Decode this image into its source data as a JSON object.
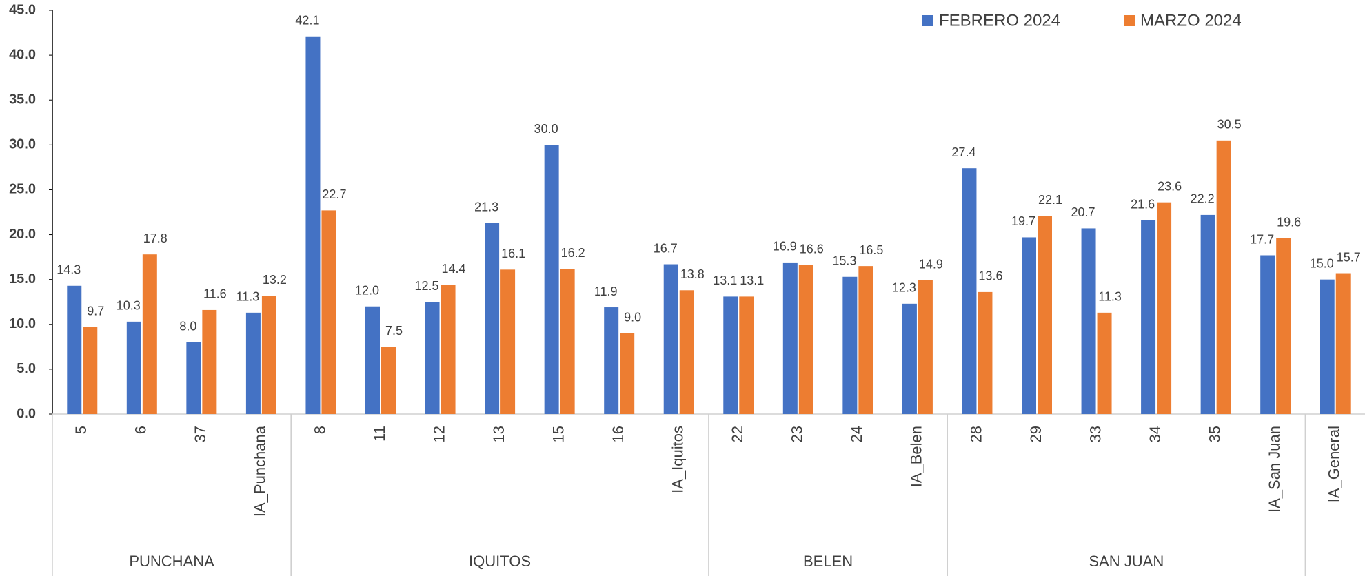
{
  "chart_data": {
    "type": "bar",
    "categories": [
      "5",
      "6",
      "37",
      "IA_Punchana",
      "8",
      "11",
      "12",
      "13",
      "15",
      "16",
      "IA_Iquitos",
      "22",
      "23",
      "24",
      "IA_Belen",
      "28",
      "29",
      "33",
      "34",
      "35",
      "IA_San Juan",
      "IA_General"
    ],
    "category_groups": [
      "PUNCHANA",
      "PUNCHANA",
      "PUNCHANA",
      "PUNCHANA",
      "IQUITOS",
      "IQUITOS",
      "IQUITOS",
      "IQUITOS",
      "IQUITOS",
      "IQUITOS",
      "IQUITOS",
      "BELEN",
      "BELEN",
      "BELEN",
      "BELEN",
      "SAN JUAN",
      "SAN JUAN",
      "SAN JUAN",
      "SAN JUAN",
      "SAN JUAN",
      "SAN JUAN",
      null
    ],
    "series": [
      {
        "name": "FEBRERO 2024",
        "color": "#4472c4",
        "values": [
          14.3,
          10.3,
          8.0,
          11.3,
          42.1,
          12.0,
          12.5,
          21.3,
          30.0,
          11.9,
          16.7,
          13.1,
          16.9,
          15.3,
          12.3,
          27.4,
          19.7,
          20.7,
          21.6,
          22.2,
          17.7,
          15.0
        ],
        "value_labels": [
          "14.3",
          "10.3",
          "8.0",
          "11.3",
          "42.1",
          "12.0",
          "12.5",
          "21.3",
          "30.0",
          "11.9",
          "16.7",
          "13.1",
          "16.9",
          "15.3",
          "12.3",
          "27.4",
          "19.7",
          "20.7",
          "21.6",
          "22.2",
          "17.7",
          "15.0"
        ]
      },
      {
        "name": "MARZO 2024",
        "color": "#ed7d31",
        "values": [
          9.7,
          17.8,
          11.6,
          13.2,
          22.7,
          7.5,
          14.4,
          16.1,
          16.2,
          9.0,
          13.8,
          13.1,
          16.6,
          16.5,
          14.9,
          13.6,
          22.1,
          11.3,
          23.6,
          30.5,
          19.6,
          15.7
        ],
        "value_labels": [
          "9.7",
          "17.8",
          "11.6",
          "13.2",
          "22.7",
          "7.5",
          "14.4",
          "16.1",
          "16.2",
          "9.0",
          "13.8",
          "13.1",
          "16.6",
          "16.5",
          "14.9",
          "13.6",
          "22.1",
          "11.3",
          "23.6",
          "30.5",
          "19.6",
          "15.7"
        ]
      }
    ],
    "ylim": [
      0,
      45
    ],
    "yticks": [
      {
        "value": 0,
        "label": "0.0"
      },
      {
        "value": 5,
        "label": "5.0"
      },
      {
        "value": 10,
        "label": "10.0"
      },
      {
        "value": 15,
        "label": "15.0"
      },
      {
        "value": 20,
        "label": "20.0"
      },
      {
        "value": 25,
        "label": "25.0"
      },
      {
        "value": 30,
        "label": "30.0"
      },
      {
        "value": 35,
        "label": "35.0"
      },
      {
        "value": 40,
        "label": "40.0"
      },
      {
        "value": 45,
        "label": "45.0"
      }
    ],
    "grid": false,
    "legend": "top-right"
  }
}
